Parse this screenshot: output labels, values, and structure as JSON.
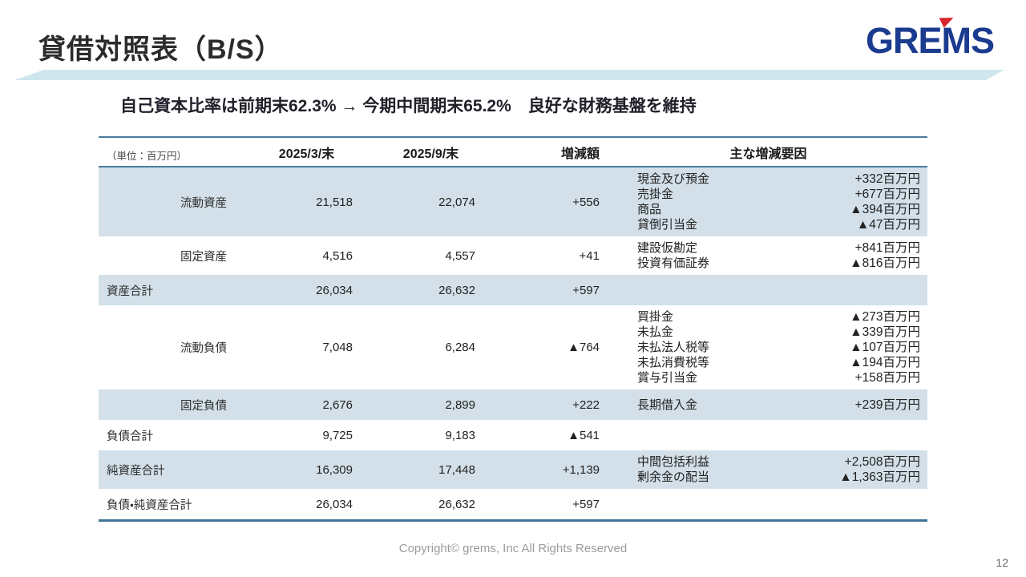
{
  "header": {
    "title": "貸借対照表（B/S）",
    "logo_text": "GREMS"
  },
  "subtitle": "自己資本比率は前期末62.3% → 今期中間期末65.2%　良好な財務基盤を維持",
  "table": {
    "unit_label": "（単位：百万円）",
    "columns": [
      "2025/3/末",
      "2025/9/末",
      "増減額",
      "主な増減要因"
    ],
    "rows": [
      {
        "label": "流動資産",
        "indent": true,
        "shaded": true,
        "v1": "21,518",
        "v2": "22,074",
        "diff": "+556",
        "factors": [
          {
            "name": "現金及び預金",
            "amount": "+332百万円"
          },
          {
            "name": "売掛金",
            "amount": "+677百万円"
          },
          {
            "name": "商品",
            "amount": "▲394百万円"
          },
          {
            "name": "貸倒引当金",
            "amount": "▲47百万円"
          }
        ]
      },
      {
        "label": "固定資産",
        "indent": true,
        "shaded": false,
        "v1": "4,516",
        "v2": "4,557",
        "diff": "+41",
        "factors": [
          {
            "name": "建設仮勘定",
            "amount": "+841百万円"
          },
          {
            "name": "投資有価証券",
            "amount": "▲816百万円"
          }
        ]
      },
      {
        "label": "資産合計",
        "indent": false,
        "shaded": true,
        "v1": "26,034",
        "v2": "26,632",
        "diff": "+597",
        "factors": []
      },
      {
        "label": "流動負債",
        "indent": true,
        "shaded": false,
        "v1": "7,048",
        "v2": "6,284",
        "diff": "▲764",
        "factors": [
          {
            "name": "買掛金",
            "amount": "▲273百万円"
          },
          {
            "name": "未払金",
            "amount": "▲339百万円"
          },
          {
            "name": "未払法人税等",
            "amount": "▲107百万円"
          },
          {
            "name": "未払消費税等",
            "amount": "▲194百万円"
          },
          {
            "name": "賞与引当金",
            "amount": "+158百万円"
          }
        ]
      },
      {
        "label": "固定負債",
        "indent": true,
        "shaded": true,
        "v1": "2,676",
        "v2": "2,899",
        "diff": "+222",
        "factors": [
          {
            "name": "長期借入金",
            "amount": "+239百万円"
          }
        ]
      },
      {
        "label": "負債合計",
        "indent": false,
        "shaded": false,
        "v1": "9,725",
        "v2": "9,183",
        "diff": "▲541",
        "factors": []
      },
      {
        "label": "純資産合計",
        "indent": false,
        "shaded": true,
        "v1": "16,309",
        "v2": "17,448",
        "diff": "+1,139",
        "factors": [
          {
            "name": "中間包括利益",
            "amount": "+2,508百万円"
          },
          {
            "name": "剰余金の配当",
            "amount": "▲1,363百万円"
          }
        ]
      },
      {
        "label": "負債・純資産合計",
        "indent": false,
        "shaded": false,
        "v1": "26,034",
        "v2": "26,632",
        "diff": "+597",
        "factors": []
      }
    ]
  },
  "footer": {
    "copyright": "Copyright© grems, Inc All Rights Reserved",
    "page_number": "12"
  },
  "colors": {
    "accent_row_blue": "#d3e0e9",
    "ribbon_blue": "#cfe6ef",
    "table_border_blue": "#4a7b9e",
    "logo_navy": "#1b3b8f",
    "logo_red": "#d6252b"
  }
}
